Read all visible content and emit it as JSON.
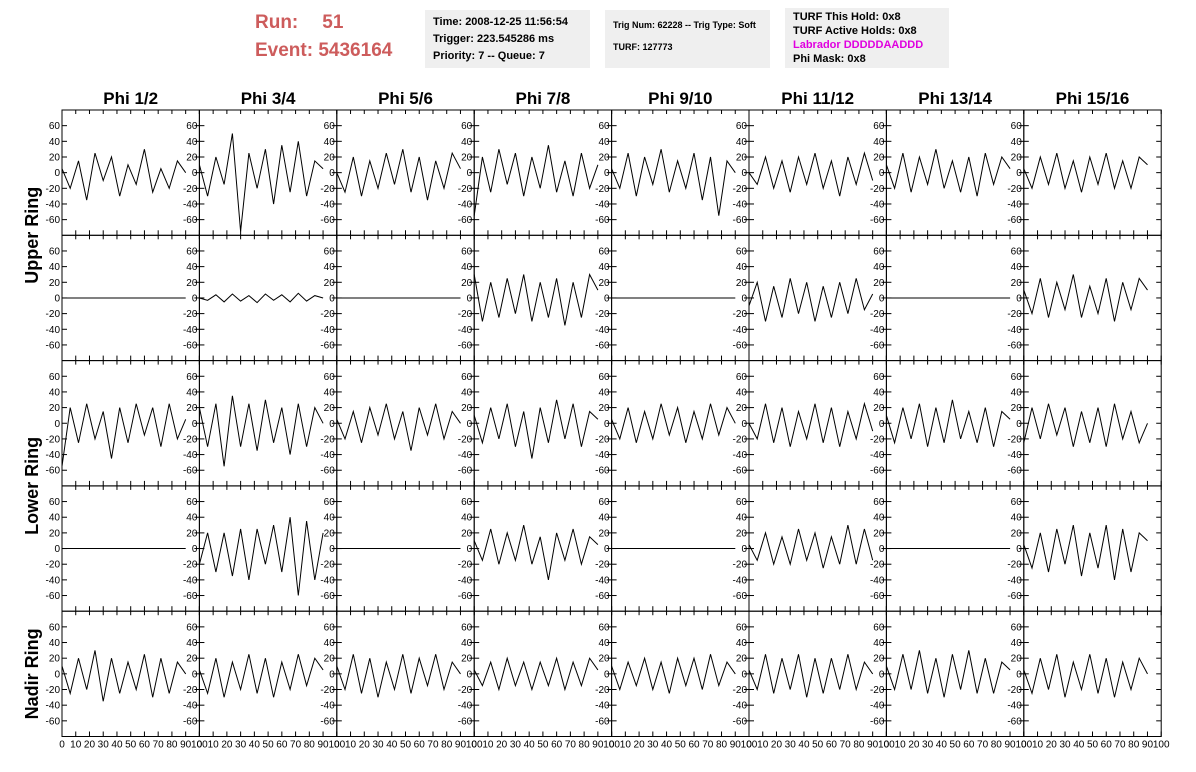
{
  "header": {
    "run_label": "Run:",
    "run": 51,
    "event_label": "Event:",
    "event": 5436164,
    "box1": [
      "Time: 2008-12-25 11:56:54",
      "Trigger: 223.545286 ms",
      "Priority: 7 -- Queue: 7"
    ],
    "box2": [
      "Trig Num: 62228 -- Trig Type: Soft",
      "TURF: 127773"
    ],
    "box3": [
      "TURF This Hold: 0x8",
      "TURF Active Holds: 0x8",
      "Labrador DDDDDAADDD",
      "Phi Mask: 0x8"
    ]
  },
  "grid": {
    "columns": [
      "Phi 1/2",
      "Phi 3/4",
      "Phi 5/6",
      "Phi 7/8",
      "Phi 9/10",
      "Phi 11/12",
      "Phi 13/14",
      "Phi 15/16"
    ],
    "row_labels": [
      "Upper Ring",
      "Lower Ring",
      "Nadir Ring"
    ],
    "x": [
      0,
      6,
      12,
      18,
      24,
      30,
      36,
      42,
      48,
      54,
      60,
      66,
      72,
      78,
      84,
      90
    ],
    "xlim": [
      0,
      100
    ],
    "xticks": [
      0,
      10,
      20,
      30,
      40,
      50,
      60,
      70,
      80,
      90,
      100
    ],
    "ylim": [
      -80,
      80
    ],
    "yticks": [
      -60,
      -40,
      -20,
      0,
      20,
      40,
      60
    ],
    "color": "#000000",
    "panels": [
      [
        [
          5,
          -20,
          15,
          -35,
          25,
          -10,
          20,
          -30,
          10,
          -15,
          30,
          -25,
          5,
          -20,
          15,
          0
        ],
        [
          10,
          -30,
          20,
          -15,
          50,
          -75,
          25,
          -20,
          30,
          -40,
          35,
          -25,
          40,
          -30,
          15,
          5
        ],
        [
          0,
          -25,
          20,
          -30,
          15,
          -20,
          25,
          -15,
          30,
          -25,
          20,
          -35,
          15,
          -20,
          25,
          5
        ],
        [
          -55,
          20,
          -25,
          30,
          -15,
          25,
          -30,
          20,
          -20,
          35,
          -25,
          15,
          -30,
          25,
          -20,
          10
        ],
        [
          5,
          -20,
          25,
          -30,
          20,
          -15,
          30,
          -25,
          15,
          -20,
          25,
          -35,
          20,
          -55,
          15,
          0
        ],
        [
          0,
          -15,
          20,
          -20,
          15,
          -25,
          20,
          -15,
          25,
          -20,
          15,
          -30,
          20,
          -15,
          25,
          -10
        ],
        [
          10,
          -20,
          25,
          -25,
          20,
          -15,
          30,
          -20,
          15,
          -25,
          20,
          -30,
          25,
          -15,
          20,
          5
        ],
        [
          5,
          -20,
          20,
          -15,
          25,
          -20,
          15,
          -25,
          20,
          -15,
          25,
          -20,
          15,
          -20,
          20,
          10
        ]
      ],
      [
        [
          0,
          0,
          0,
          0,
          0,
          0,
          0,
          0,
          0,
          0,
          0,
          0,
          0,
          0,
          0,
          0
        ],
        [
          0,
          -3,
          4,
          -5,
          5,
          -4,
          3,
          -6,
          5,
          -3,
          4,
          -5,
          6,
          -4,
          3,
          0
        ],
        [
          0,
          0,
          0,
          0,
          0,
          0,
          0,
          0,
          0,
          0,
          0,
          0,
          0,
          0,
          0,
          0
        ],
        [
          30,
          -30,
          20,
          -25,
          25,
          -20,
          30,
          -30,
          20,
          -25,
          25,
          -35,
          20,
          -25,
          30,
          10
        ],
        [
          0,
          0,
          0,
          0,
          0,
          0,
          0,
          0,
          0,
          0,
          0,
          0,
          0,
          0,
          0,
          0
        ],
        [
          -10,
          20,
          -30,
          15,
          -25,
          25,
          -20,
          20,
          -30,
          15,
          -25,
          20,
          -20,
          25,
          -15,
          5
        ],
        [
          0,
          0,
          0,
          0,
          0,
          0,
          0,
          0,
          0,
          0,
          0,
          0,
          0,
          0,
          0,
          0
        ],
        [
          10,
          -20,
          25,
          -25,
          20,
          -15,
          30,
          -25,
          15,
          -20,
          25,
          -30,
          20,
          -15,
          25,
          10
        ]
      ],
      [
        [
          -55,
          20,
          -25,
          25,
          -20,
          15,
          -45,
          20,
          -25,
          25,
          -15,
          20,
          -30,
          25,
          -20,
          5
        ],
        [
          20,
          -30,
          25,
          -55,
          35,
          -30,
          25,
          -35,
          30,
          -25,
          20,
          -40,
          25,
          -30,
          20,
          0
        ],
        [
          5,
          -20,
          15,
          -25,
          20,
          -15,
          25,
          -20,
          15,
          -35,
          20,
          -15,
          25,
          -20,
          15,
          0
        ],
        [
          10,
          -25,
          20,
          -20,
          25,
          -30,
          15,
          -45,
          20,
          -25,
          30,
          -20,
          25,
          -30,
          15,
          5
        ],
        [
          5,
          -20,
          20,
          -25,
          15,
          -20,
          25,
          -15,
          20,
          -25,
          15,
          -20,
          25,
          -15,
          20,
          0
        ],
        [
          0,
          -20,
          25,
          -25,
          20,
          -30,
          15,
          -20,
          25,
          -25,
          20,
          -30,
          15,
          -20,
          25,
          -10
        ],
        [
          10,
          -25,
          20,
          -20,
          25,
          -30,
          20,
          -25,
          30,
          -20,
          15,
          -25,
          20,
          -30,
          15,
          5
        ],
        [
          -25,
          20,
          -20,
          25,
          -15,
          20,
          -30,
          15,
          -25,
          20,
          -30,
          25,
          -20,
          15,
          -25,
          0
        ]
      ],
      [
        [
          0,
          0,
          0,
          0,
          0,
          0,
          0,
          0,
          0,
          0,
          0,
          0,
          0,
          0,
          0,
          0
        ],
        [
          -20,
          20,
          -30,
          20,
          -35,
          25,
          -40,
          25,
          -20,
          30,
          -30,
          40,
          -60,
          35,
          -40,
          20
        ],
        [
          0,
          0,
          0,
          0,
          0,
          0,
          0,
          0,
          0,
          0,
          0,
          0,
          0,
          0,
          0,
          0
        ],
        [
          10,
          -15,
          25,
          -20,
          20,
          -15,
          30,
          -20,
          15,
          -40,
          20,
          -15,
          25,
          -20,
          15,
          5
        ],
        [
          0,
          0,
          0,
          0,
          0,
          0,
          0,
          0,
          0,
          0,
          0,
          0,
          0,
          0,
          0,
          0
        ],
        [
          5,
          -15,
          20,
          -20,
          15,
          -20,
          25,
          -15,
          20,
          -25,
          15,
          -20,
          30,
          -20,
          25,
          -15
        ],
        [
          0,
          0,
          0,
          0,
          0,
          0,
          0,
          0,
          0,
          0,
          0,
          0,
          0,
          0,
          0,
          0
        ],
        [
          5,
          -25,
          20,
          -30,
          25,
          -20,
          30,
          -35,
          20,
          -25,
          30,
          -40,
          25,
          -30,
          20,
          10
        ]
      ],
      [
        [
          10,
          -25,
          20,
          -20,
          30,
          -35,
          20,
          -25,
          15,
          -20,
          25,
          -30,
          20,
          -25,
          15,
          0
        ],
        [
          5,
          -25,
          20,
          -30,
          15,
          -20,
          25,
          -25,
          20,
          -30,
          15,
          -20,
          25,
          -15,
          20,
          5
        ],
        [
          10,
          -20,
          25,
          -25,
          20,
          -30,
          15,
          -20,
          25,
          -25,
          20,
          -15,
          25,
          -20,
          15,
          0
        ],
        [
          5,
          -15,
          15,
          -20,
          20,
          -15,
          15,
          -20,
          15,
          -15,
          20,
          -20,
          15,
          -15,
          20,
          5
        ],
        [
          10,
          -20,
          15,
          -15,
          20,
          -20,
          15,
          -25,
          20,
          -15,
          20,
          -20,
          25,
          -15,
          15,
          0
        ],
        [
          5,
          -20,
          25,
          -25,
          20,
          -20,
          25,
          -30,
          20,
          -25,
          20,
          -20,
          25,
          -20,
          15,
          0
        ],
        [
          10,
          -20,
          25,
          -20,
          30,
          -25,
          20,
          -30,
          25,
          -20,
          30,
          -25,
          20,
          -25,
          15,
          5
        ],
        [
          5,
          -25,
          20,
          -20,
          25,
          -30,
          15,
          -20,
          25,
          -25,
          20,
          -30,
          15,
          -20,
          20,
          0
        ]
      ]
    ]
  }
}
